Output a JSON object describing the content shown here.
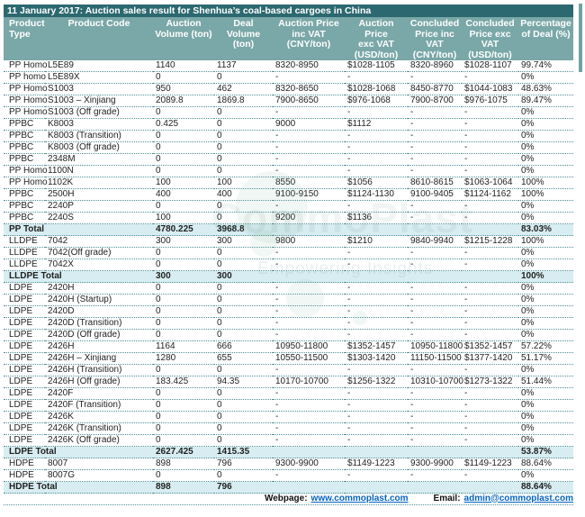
{
  "title": "11 January 2017: Auction sales result for Shenhua’s coal-based cargoes in China",
  "colors": {
    "title_bar_bg": "#2c686f",
    "header_bg": "#7aa7a7",
    "total_row_bg": "#d8edf2",
    "row_separator": "#4d9098",
    "link_blue": "#0563c1"
  },
  "table": {
    "columns": [
      {
        "id": "product_type",
        "label": "Product\nType"
      },
      {
        "id": "product_code",
        "label": "Product Code"
      },
      {
        "id": "auction_volume",
        "label": "Auction\nVolume (ton)"
      },
      {
        "id": "deal_volume",
        "label": "Deal\nVolume\n(ton)"
      },
      {
        "id": "auction_price_inc_vat",
        "label": "Auction Price\ninc VAT\n(CNY/ton)"
      },
      {
        "id": "auction_price_exc_vat",
        "label": "Auction\nPrice\nexc VAT\n(USD/ton)"
      },
      {
        "id": "concluded_price_inc_vat",
        "label": "Concluded\nPrice inc VAT\n(CNY/ton)"
      },
      {
        "id": "concluded_price_exc_vat",
        "label": "Concluded\nPrice exc VAT\n(USD/ton)"
      },
      {
        "id": "percentage_of_deal",
        "label": "Percentage\nof Deal (%)"
      }
    ],
    "rows": [
      {
        "total": false,
        "cells": [
          "PP Homo",
          "L5E89",
          "1140",
          "1137",
          "8320-8950",
          "$1028-1105",
          "8320-8960",
          "$1028-1107",
          "99.74%"
        ]
      },
      {
        "total": false,
        "cells": [
          "PP homo",
          "L5E89X",
          "0",
          "0",
          "-",
          "-",
          "-",
          "-",
          "0%"
        ]
      },
      {
        "total": false,
        "cells": [
          "PP Homo",
          "S1003",
          "950",
          "462",
          "8320-8650",
          "$1028-1068",
          "8450-8770",
          "$1044-1083",
          "48.63%"
        ]
      },
      {
        "total": false,
        "cells": [
          "PP Homo",
          "S1003 – Xinjiang",
          "2089.8",
          "1869.8",
          "7900-8650",
          "$976-1068",
          "7900-8700",
          "$976-1075",
          "89.47%"
        ]
      },
      {
        "total": false,
        "cells": [
          "PP Homo",
          "S1003 (Off grade)",
          "0",
          "0",
          "-",
          "-",
          "-",
          "-",
          "0%"
        ]
      },
      {
        "total": false,
        "cells": [
          "PPBC",
          "K8003",
          "0.425",
          "0",
          "9000",
          "$1112",
          "-",
          "-",
          "0%"
        ]
      },
      {
        "total": false,
        "cells": [
          "PPBC",
          "K8003 (Transition)",
          "0",
          "0",
          "-",
          "-",
          "-",
          "-",
          "0%"
        ]
      },
      {
        "total": false,
        "cells": [
          "PPBC",
          "K8003 (Off grade)",
          "0",
          "0",
          "-",
          "-",
          "-",
          "-",
          "0%"
        ]
      },
      {
        "total": false,
        "cells": [
          "PPBC",
          "2348M",
          "0",
          "0",
          "-",
          "-",
          "-",
          "-",
          "0%"
        ]
      },
      {
        "total": false,
        "cells": [
          "PP Homo",
          "1100N",
          "0",
          "0",
          "-",
          "-",
          "-",
          "-",
          "0%"
        ]
      },
      {
        "total": false,
        "cells": [
          "PP Homo",
          "1102K",
          "100",
          "100",
          "8550",
          "$1056",
          "8610-8615",
          "$1063-1064",
          "100%"
        ]
      },
      {
        "total": false,
        "cells": [
          "PPBC",
          "2500H",
          "400",
          "400",
          "9100-9150",
          "$1124-1130",
          "9100-9405",
          "$1124-1162",
          "100%"
        ]
      },
      {
        "total": false,
        "cells": [
          "PPBC",
          "2240P",
          "0",
          "0",
          "-",
          "-",
          "-",
          "-",
          "0%"
        ]
      },
      {
        "total": false,
        "cells": [
          "PPBC",
          "2240S",
          "100",
          "0",
          "9200",
          "$1136",
          "-",
          "-",
          "0%"
        ]
      },
      {
        "total": true,
        "cells": [
          "PP Total",
          "",
          "4780.225",
          "3968.8",
          "",
          "",
          "",
          "",
          "83.03%"
        ]
      },
      {
        "total": false,
        "cells": [
          "LLDPE",
          "7042",
          "300",
          "300",
          "9800",
          "$1210",
          "9840-9940",
          "$1215-1228",
          "100%"
        ]
      },
      {
        "total": false,
        "cells": [
          "LLDPE",
          "7042(Off grade)",
          "0",
          "0",
          "-",
          "-",
          "-",
          "-",
          "0%"
        ]
      },
      {
        "total": false,
        "cells": [
          "LLDPE",
          "7042X",
          "0",
          "0",
          "-",
          "-",
          "-",
          "-",
          "0%"
        ]
      },
      {
        "total": true,
        "cells": [
          "LLDPE Total",
          "",
          "300",
          "300",
          "",
          "",
          "",
          "",
          "100%"
        ]
      },
      {
        "total": false,
        "cells": [
          "LDPE",
          "2420H",
          "0",
          "0",
          "-",
          "-",
          "-",
          "-",
          "0%"
        ]
      },
      {
        "total": false,
        "cells": [
          "LDPE",
          "2420H (Startup)",
          "0",
          "0",
          "-",
          "-",
          "-",
          "-",
          "0%"
        ]
      },
      {
        "total": false,
        "cells": [
          "LDPE",
          "2420D",
          "0",
          "0",
          "-",
          "-",
          "-",
          "-",
          "0%"
        ]
      },
      {
        "total": false,
        "cells": [
          "LDPE",
          "2420D (Transition)",
          "0",
          "0",
          "-",
          "-",
          "-",
          "-",
          "0%"
        ]
      },
      {
        "total": false,
        "cells": [
          "LDPE",
          "2420D (Off grade)",
          "0",
          "0",
          "-",
          "-",
          "-",
          "-",
          "0%"
        ]
      },
      {
        "total": false,
        "cells": [
          "LDPE",
          "2426H",
          "1164",
          "666",
          "10950-11800",
          "$1352-1457",
          "10950-11800",
          "$1352-1457",
          "57.22%"
        ]
      },
      {
        "total": false,
        "cells": [
          "LDPE",
          "2426H – Xinjiang",
          "1280",
          "655",
          "10550-11500",
          "$1303-1420",
          "11150-11500",
          "$1377-1420",
          "51.17%"
        ]
      },
      {
        "total": false,
        "cells": [
          "LDPE",
          "2426H (Transition)",
          "0",
          "0",
          "-",
          "-",
          "-",
          "-",
          "0%"
        ]
      },
      {
        "total": false,
        "cells": [
          "LDPE",
          "2426H (Off grade)",
          "183.425",
          "94.35",
          "10170-10700",
          "$1256-1322",
          "10310-10700",
          "$1273-1322",
          "51.44%"
        ]
      },
      {
        "total": false,
        "cells": [
          "LDPE",
          "2420F",
          "0",
          "0",
          "-",
          "-",
          "-",
          "-",
          "0%"
        ]
      },
      {
        "total": false,
        "cells": [
          "LDPE",
          "2420F (Transition)",
          "0",
          "0",
          "-",
          "-",
          "-",
          "-",
          "0%"
        ]
      },
      {
        "total": false,
        "cells": [
          "LDPE",
          "2426K",
          "0",
          "0",
          "-",
          "-",
          "-",
          "-",
          "0%"
        ]
      },
      {
        "total": false,
        "cells": [
          "LDPE",
          "2426K (Transition)",
          "0",
          "0",
          "-",
          "-",
          "-",
          "-",
          "0%"
        ]
      },
      {
        "total": false,
        "cells": [
          "LDPE",
          "2426K (Off grade)",
          "0",
          "0",
          "-",
          "-",
          "-",
          "-",
          "0%"
        ]
      },
      {
        "total": true,
        "cells": [
          "LDPE Total",
          "",
          "2627.425",
          "1415.35",
          "",
          "",
          "",
          "",
          "53.87%"
        ]
      },
      {
        "total": false,
        "cells": [
          "HDPE",
          "8007",
          "898",
          "796",
          "9300-9900",
          "$1149-1223",
          "9300-9900",
          "$1149-1223",
          "88.64%"
        ]
      },
      {
        "total": false,
        "cells": [
          "HDPE",
          "8007G",
          "0",
          "0",
          "-",
          "-",
          "-",
          "-",
          "0%"
        ]
      },
      {
        "total": true,
        "cells": [
          "HDPE Total",
          "",
          "898",
          "796",
          "",
          "",
          "",
          "",
          "88.64%"
        ]
      }
    ]
  },
  "footer": {
    "webpage_label": "Webpage:",
    "webpage_url": "www.commoplast.com",
    "email_label": "Email:",
    "email_address": "admin@commoplast.com"
  },
  "watermark": {
    "brand": "CommoPlast",
    "tagline": "Empowering Insights"
  }
}
